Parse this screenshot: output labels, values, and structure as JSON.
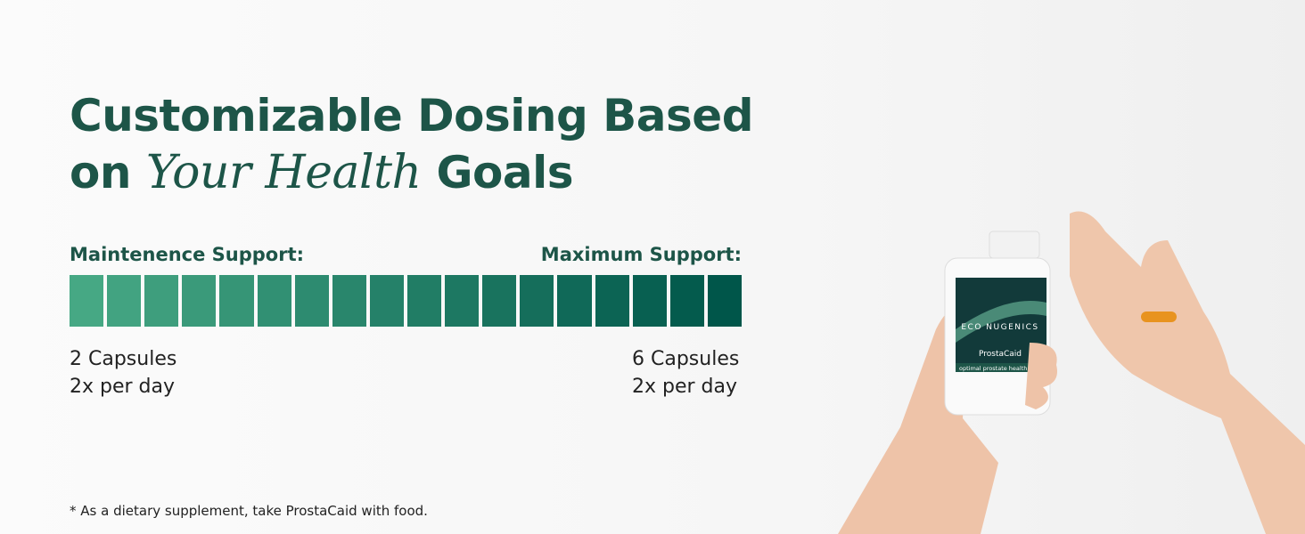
{
  "header": {
    "title_line1": "Customizable Dosing Based",
    "title_on": "on",
    "title_emphasis": "Your Health",
    "title_end": "Goals"
  },
  "scale": {
    "min_label": "Maintenence Support:",
    "max_label": "Maximum Support:",
    "min_dose": [
      "2 Capsules",
      "2x per day"
    ],
    "max_dose": [
      "6 Capsules",
      "2x per day"
    ]
  },
  "footnote": "* As a dietary supplement, take ProstaCaid with food.",
  "product": {
    "brand": "ECO NUGENICS",
    "name": "ProstaCaid",
    "tagline": "optimal prostate health"
  }
}
